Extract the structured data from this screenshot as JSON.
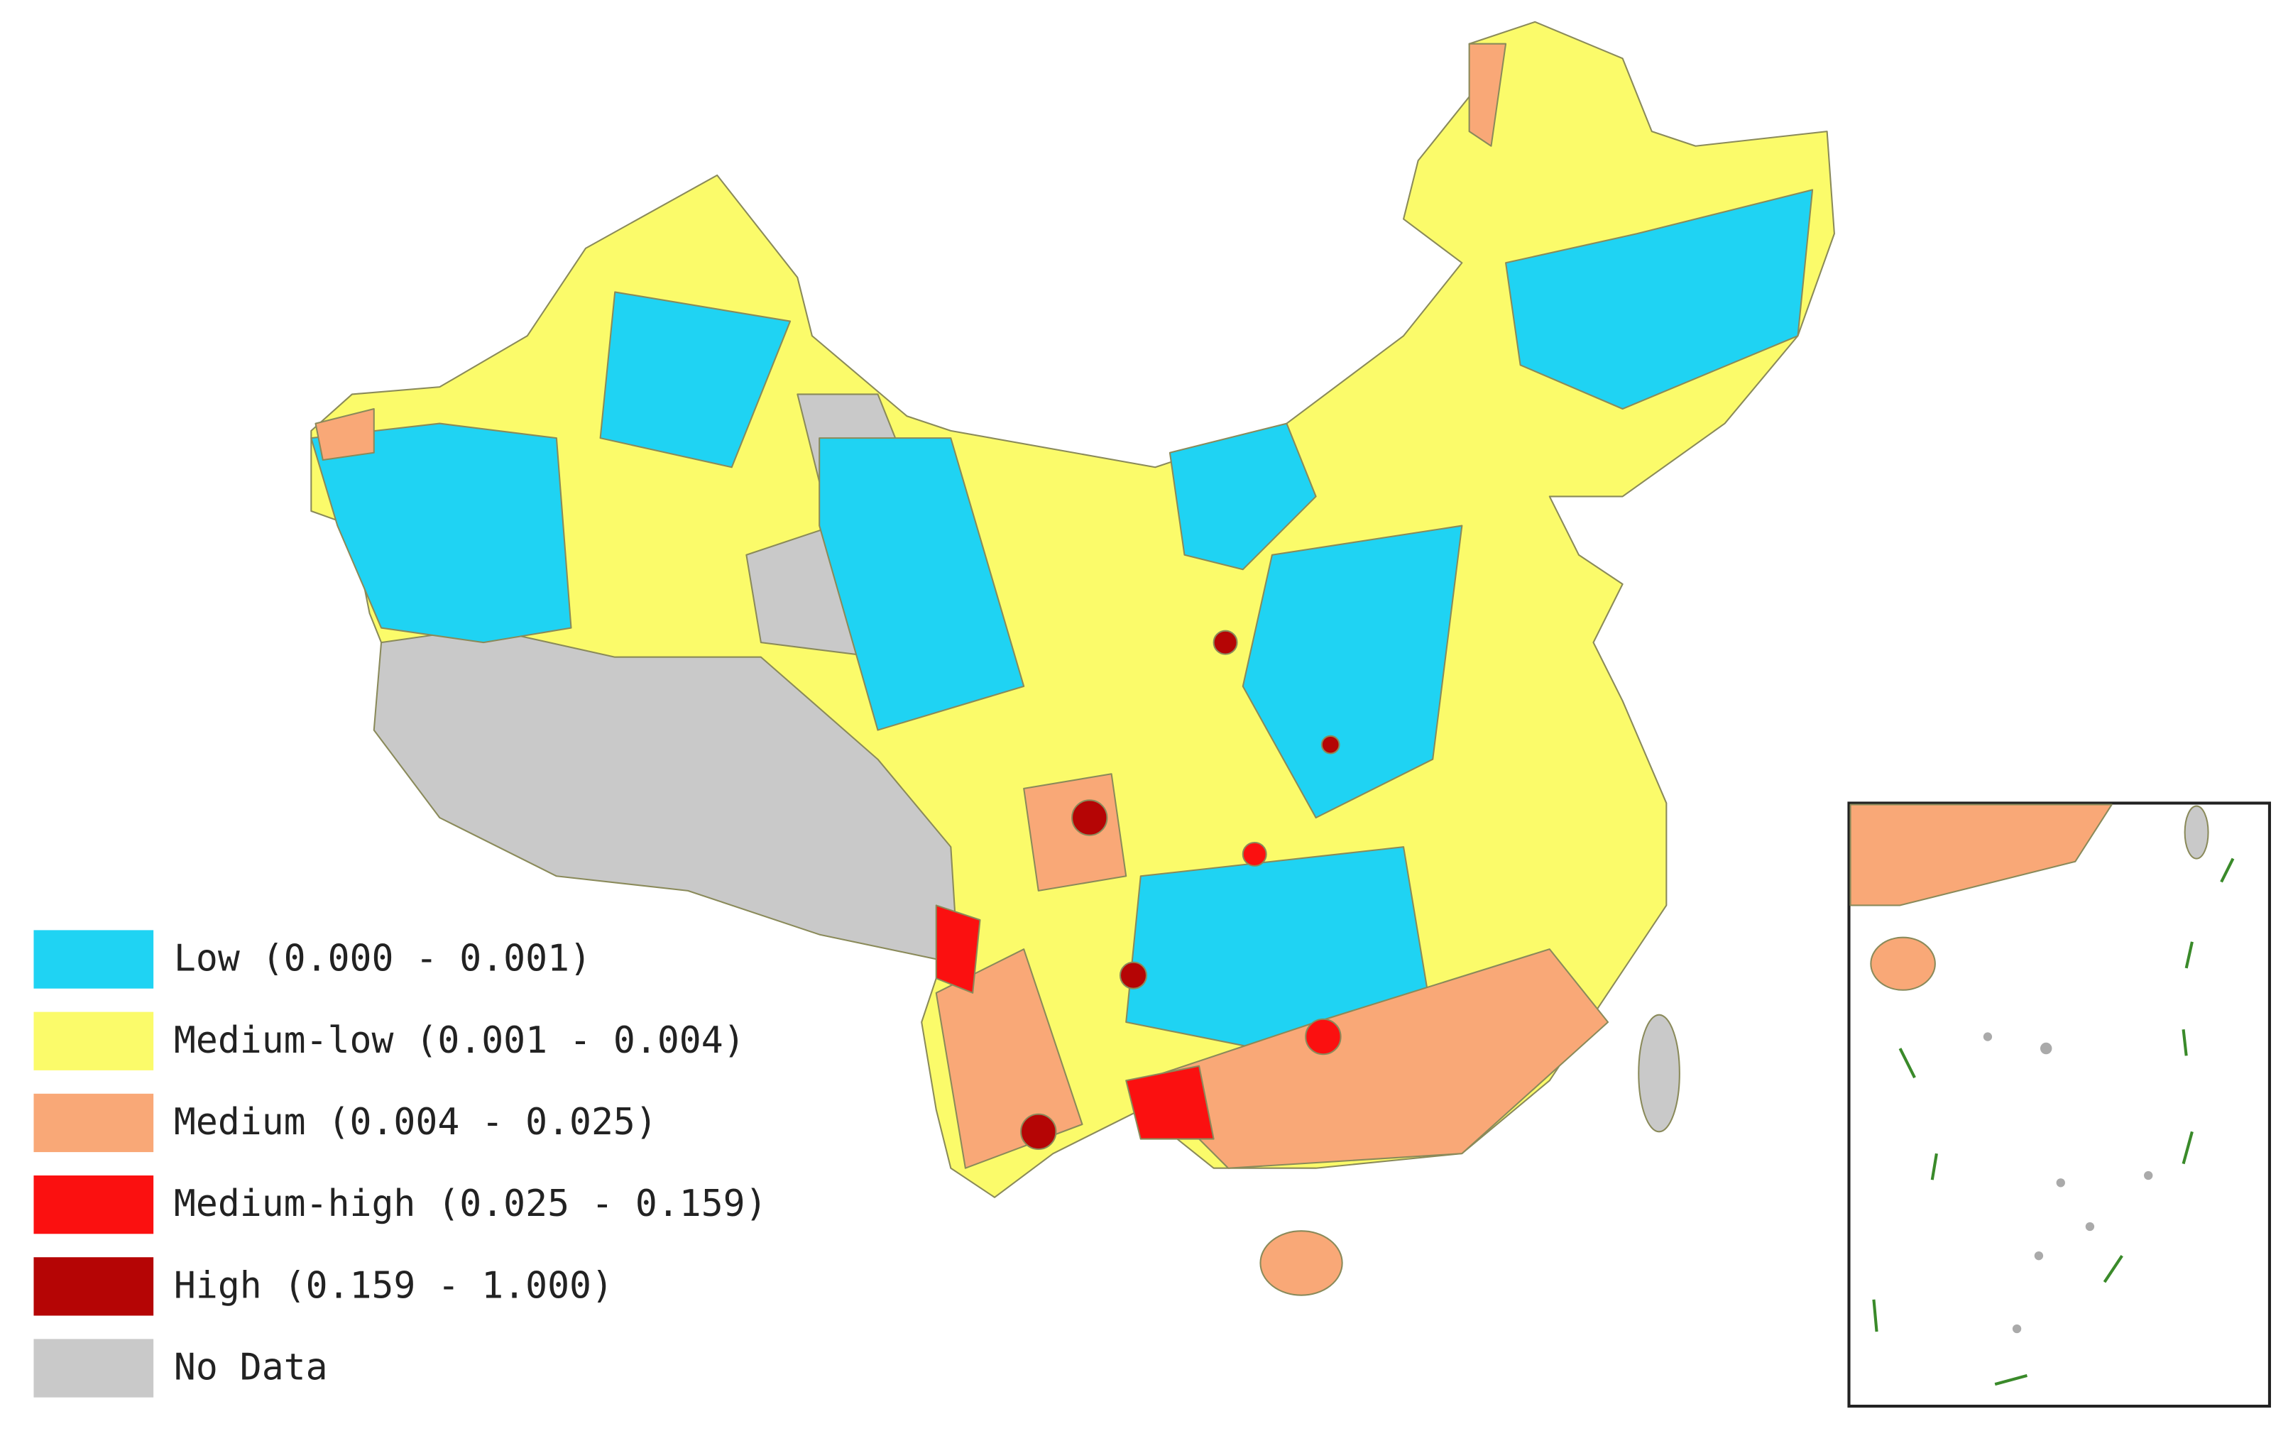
{
  "legend": [
    {
      "label": "Low (0.000 - 0.001)",
      "color": "#1fd3f3"
    },
    {
      "label": "Medium-low (0.001 - 0.004)",
      "color": "#fbfb6a"
    },
    {
      "label": "Medium (0.004 - 0.025)",
      "color": "#f9a877"
    },
    {
      "label": "Medium-high (0.025 - 0.159)",
      "color": "#fb1010"
    },
    {
      "label": "High (0.159 - 1.000)",
      "color": "#b50505"
    },
    {
      "label": "No Data",
      "color": "#c9c9c9"
    }
  ]
}
